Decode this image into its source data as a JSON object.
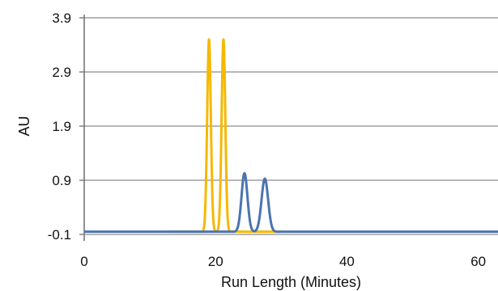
{
  "chart_data": {
    "type": "line",
    "xlabel": "Run Length (Minutes)",
    "ylabel": "AU",
    "xlim": [
      0,
      63
    ],
    "ylim": [
      -0.1,
      3.9
    ],
    "x_ticks": [
      0,
      20,
      40,
      60
    ],
    "y_ticks": [
      -0.1,
      0.9,
      1.9,
      2.9,
      3.9
    ],
    "grid": "horizontal",
    "series": [
      {
        "color": "#F5B800",
        "peaks": [
          {
            "center": 19.0,
            "height": 3.55,
            "sigma": 0.28
          },
          {
            "center": 21.2,
            "height": 3.55,
            "sigma": 0.28
          }
        ],
        "baseline": -0.05,
        "x_range": [
          13.0,
          30.0
        ]
      },
      {
        "color": "#4A74B0",
        "peaks": [
          {
            "center": 24.4,
            "height": 1.08,
            "sigma": 0.45
          },
          {
            "center": 27.5,
            "height": 0.98,
            "sigma": 0.5
          }
        ],
        "baseline": -0.05,
        "x_range": [
          0.0,
          63.0
        ]
      }
    ]
  }
}
